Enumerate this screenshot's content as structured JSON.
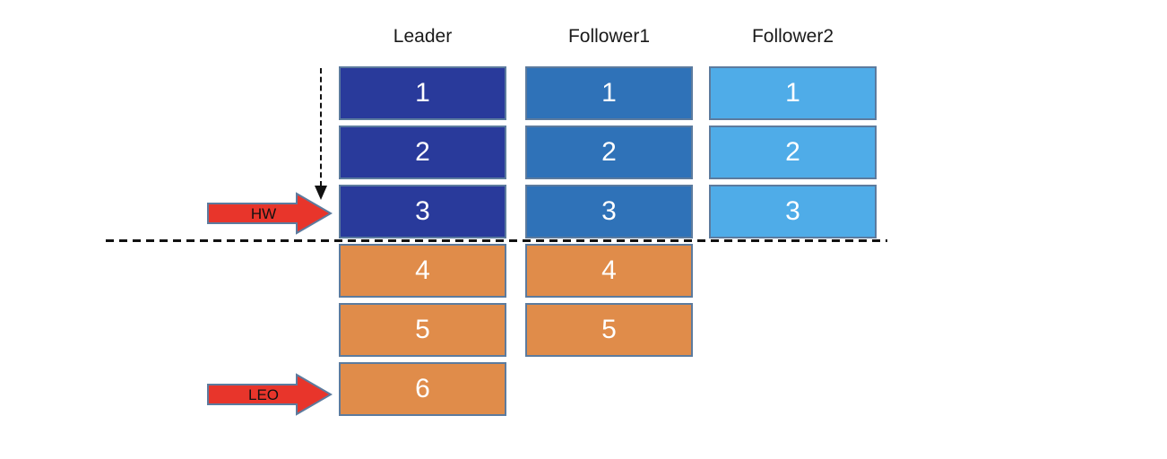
{
  "diagram": {
    "columns": [
      {
        "name": "Leader",
        "committed_color": "#293A9B",
        "entries": [
          {
            "value": "1",
            "state": "committed"
          },
          {
            "value": "2",
            "state": "committed"
          },
          {
            "value": "3",
            "state": "committed"
          },
          {
            "value": "4",
            "state": "uncommitted"
          },
          {
            "value": "5",
            "state": "uncommitted"
          },
          {
            "value": "6",
            "state": "uncommitted"
          }
        ]
      },
      {
        "name": "Follower1",
        "committed_color": "#2F72B8",
        "entries": [
          {
            "value": "1",
            "state": "committed"
          },
          {
            "value": "2",
            "state": "committed"
          },
          {
            "value": "3",
            "state": "committed"
          },
          {
            "value": "4",
            "state": "uncommitted"
          },
          {
            "value": "5",
            "state": "uncommitted"
          }
        ]
      },
      {
        "name": "Follower2",
        "committed_color": "#4FACE8",
        "entries": [
          {
            "value": "1",
            "state": "committed"
          },
          {
            "value": "2",
            "state": "committed"
          },
          {
            "value": "3",
            "state": "committed"
          }
        ]
      }
    ],
    "markers": {
      "hw_label": "HW",
      "leo_label": "LEO"
    },
    "colors": {
      "uncommitted_block": "#E08C4A",
      "block_border": "#5C7B9E",
      "block_number_text": "#FFFFFF",
      "marker_arrow_fill": "#E8352B",
      "marker_arrow_border": "#5C7B9E",
      "marker_label_text": "#111111",
      "dashed_line": "#111111",
      "header_text": "#1A1A1A"
    }
  }
}
